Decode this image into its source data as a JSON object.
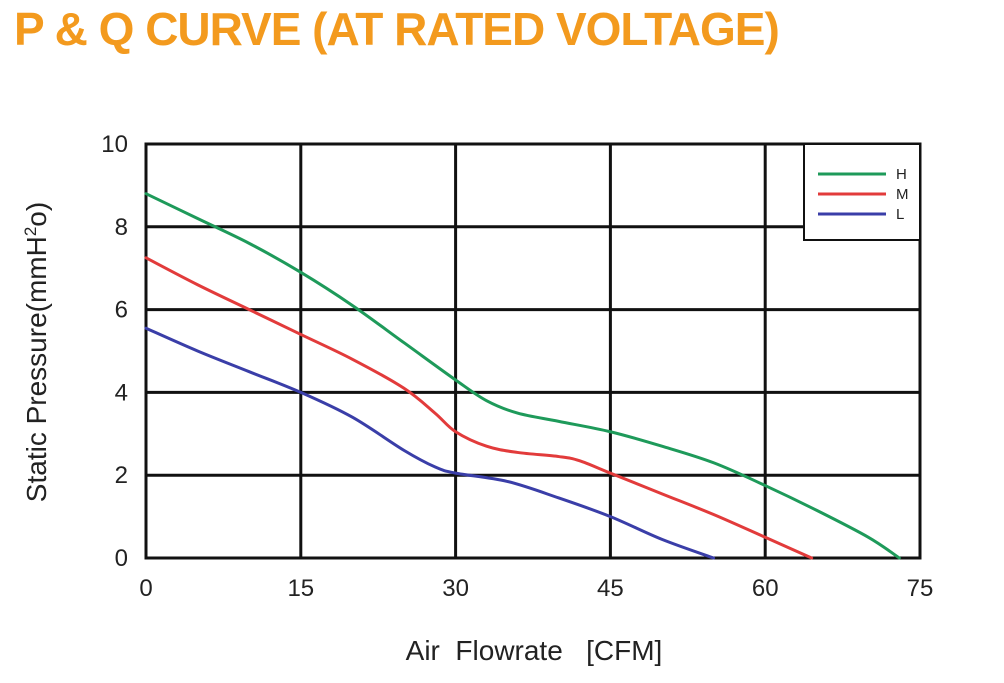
{
  "title": "P & Q CURVE (AT RATED VOLTAGE)",
  "colors": {
    "title": "#f39a1e",
    "H": "#1e9a5a",
    "M": "#e23b3b",
    "L": "#3a3ea8"
  },
  "chart_data": {
    "type": "line",
    "xlabel": "Air  Flowrate   [CFM]",
    "ylabel_main": "Static Pressure(mmH",
    "ylabel_sup": "2",
    "ylabel_end": "o)",
    "xlim": [
      0,
      75
    ],
    "ylim": [
      0,
      10
    ],
    "x_ticks": [
      "0",
      "15",
      "30",
      "45",
      "60",
      "75"
    ],
    "y_ticks": [
      "0",
      "2",
      "4",
      "6",
      "8",
      "10"
    ],
    "grid": true,
    "legend_position": "top-right",
    "series": [
      {
        "name": "H",
        "color": "#1e9a5a",
        "x": [
          0,
          5,
          10,
          15,
          20,
          25,
          30,
          33,
          36,
          40,
          45,
          50,
          55,
          60,
          65,
          70,
          73
        ],
        "y": [
          8.8,
          8.2,
          7.6,
          6.9,
          6.1,
          5.2,
          4.3,
          3.8,
          3.5,
          3.3,
          3.05,
          2.7,
          2.3,
          1.75,
          1.15,
          0.5,
          0
        ]
      },
      {
        "name": "M",
        "color": "#e23b3b",
        "x": [
          0,
          5,
          10,
          15,
          20,
          25,
          28,
          30,
          33,
          36,
          40,
          42,
          45,
          50,
          55,
          60,
          64.5
        ],
        "y": [
          7.25,
          6.6,
          6.0,
          5.4,
          4.8,
          4.1,
          3.5,
          3.05,
          2.7,
          2.55,
          2.45,
          2.35,
          2.05,
          1.55,
          1.05,
          0.5,
          0
        ]
      },
      {
        "name": "L",
        "color": "#3a3ea8",
        "x": [
          0,
          5,
          10,
          15,
          20,
          25,
          28,
          30,
          35,
          40,
          45,
          50,
          55
        ],
        "y": [
          5.55,
          5.0,
          4.5,
          4.0,
          3.4,
          2.6,
          2.2,
          2.05,
          1.85,
          1.45,
          1.0,
          0.45,
          0
        ]
      }
    ]
  }
}
